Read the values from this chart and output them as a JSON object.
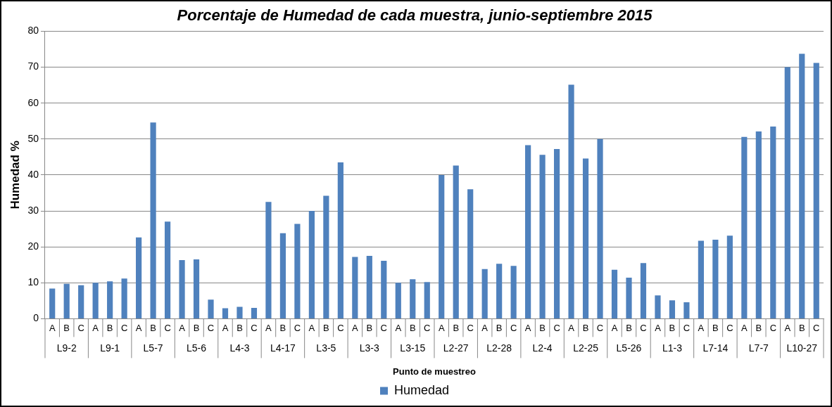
{
  "chart_data": {
    "type": "bar",
    "title": "Porcentaje de Humedad de cada muestra, junio-septiembre 2015",
    "xlabel": "Punto de muestreo",
    "ylabel": "Humedad %",
    "categories": [
      "A",
      "B",
      "C",
      "A",
      "B",
      "C",
      "A",
      "B",
      "C",
      "A",
      "B",
      "C",
      "A",
      "B",
      "C",
      "A",
      "B",
      "C",
      "A",
      "B",
      "C",
      "A",
      "B",
      "C",
      "A",
      "B",
      "C",
      "A",
      "B",
      "C",
      "A",
      "B",
      "C",
      "A",
      "B",
      "C",
      "A",
      "B",
      "C",
      "A",
      "B",
      "C",
      "A",
      "B",
      "C",
      "A",
      "B",
      "C",
      "A",
      "B",
      "C",
      "A",
      "B",
      "C"
    ],
    "annotations": [
      "L9-2",
      "L9-1",
      "L5-7",
      "L5-6",
      "L4-3",
      "L4-17",
      "L3-5",
      "L3-3",
      "L3-15",
      "L2-27",
      "L2-28",
      "L2-4",
      "L2-25",
      "L5-26",
      "L1-3",
      "L7-14",
      "L7-7",
      "L10-27"
    ],
    "series": [
      {
        "name": "Humedad",
        "color": "#4f81bd",
        "values": [
          8.4,
          9.7,
          9.3,
          10,
          10.4,
          11.2,
          22.6,
          54.6,
          27,
          16.3,
          16.5,
          5.3,
          2.9,
          3.3,
          3,
          32.5,
          23.8,
          26.4,
          30,
          34.2,
          43.5,
          17.2,
          17.5,
          16.1,
          10,
          11,
          10.2,
          40,
          42.6,
          36,
          13.8,
          15.3,
          14.7,
          48.3,
          45.6,
          47.2,
          65.1,
          44.6,
          50,
          13.6,
          11.4,
          15.5,
          6.5,
          5.1,
          4.6,
          21.7,
          22,
          23.1,
          50.6,
          52.1,
          53.5,
          70,
          73.7,
          71.2
        ]
      }
    ],
    "ylim": [
      0,
      80
    ],
    "yticks": [
      0,
      10,
      20,
      30,
      40,
      50,
      60,
      70,
      80
    ],
    "grid": "y",
    "legend": "bottom"
  }
}
